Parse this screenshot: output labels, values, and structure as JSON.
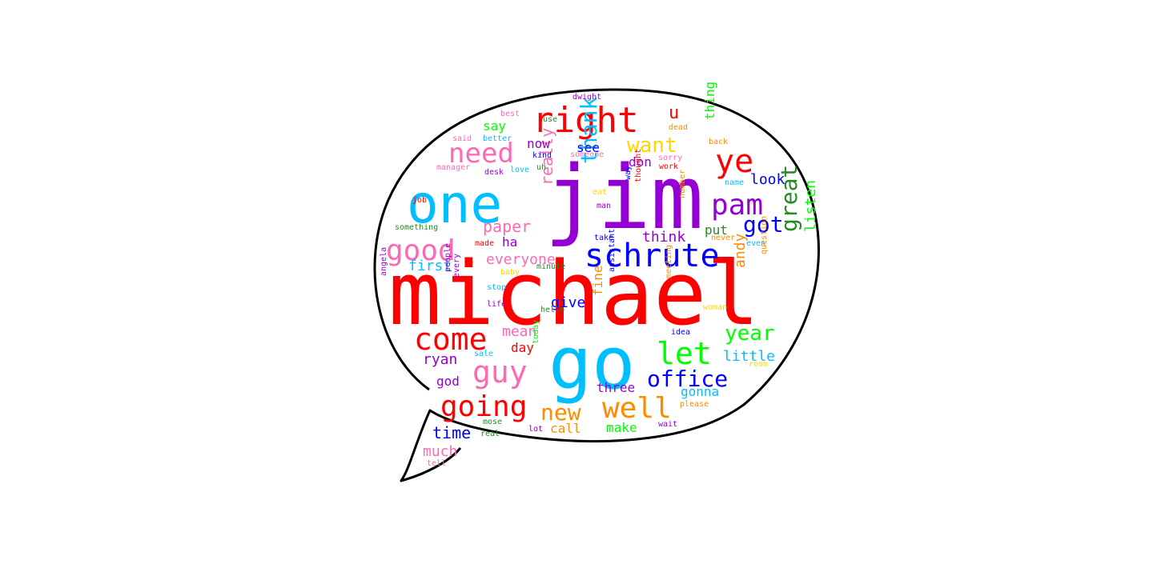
{
  "wordcloud": {
    "words": [
      {
        "text": "michael",
        "color": "#ff0000"
      },
      {
        "text": "jim",
        "color": "#9400d3"
      },
      {
        "text": "go",
        "color": "#00bfff"
      },
      {
        "text": "one",
        "color": "#00bfff"
      },
      {
        "text": "right",
        "color": "#ff0000"
      },
      {
        "text": "schrute",
        "color": "#0000ff"
      },
      {
        "text": "come",
        "color": "#ff0000"
      },
      {
        "text": "good",
        "color": "#ff69b4"
      },
      {
        "text": "need",
        "color": "#ff69b4"
      },
      {
        "text": "ye",
        "color": "#ff0000"
      },
      {
        "text": "pam",
        "color": "#9400d3"
      },
      {
        "text": "let",
        "color": "#00ff00"
      },
      {
        "text": "guy",
        "color": "#ff69b4"
      },
      {
        "text": "well",
        "color": "#ff8c00"
      },
      {
        "text": "going",
        "color": "#ff0000"
      },
      {
        "text": "office",
        "color": "#0000ff"
      },
      {
        "text": "want",
        "color": "#ffd700"
      },
      {
        "text": "got",
        "color": "#0000ff"
      },
      {
        "text": "thank",
        "color": "#00bfff"
      },
      {
        "text": "great",
        "color": "#228b22"
      },
      {
        "text": "year",
        "color": "#00ff00"
      },
      {
        "text": "new",
        "color": "#ff8c00"
      },
      {
        "text": "u",
        "color": "#ff0000"
      },
      {
        "text": "really",
        "color": "#ff69b4"
      },
      {
        "text": "paper",
        "color": "#ff69b4"
      },
      {
        "text": "everyone",
        "color": "#ff69b4"
      },
      {
        "text": "think",
        "color": "#9400d3"
      },
      {
        "text": "andy",
        "color": "#ff8c00"
      },
      {
        "text": "listen",
        "color": "#00ff00"
      },
      {
        "text": "little",
        "color": "#00bfff"
      },
      {
        "text": "gonna",
        "color": "#00bfff"
      },
      {
        "text": "look",
        "color": "#0000ff"
      },
      {
        "text": "time",
        "color": "#0000ff"
      },
      {
        "text": "ryan",
        "color": "#9400d3"
      },
      {
        "text": "first",
        "color": "#00bfff"
      },
      {
        "text": "mean",
        "color": "#ff69b4"
      },
      {
        "text": "day",
        "color": "#ff0000"
      },
      {
        "text": "give",
        "color": "#0000ff"
      },
      {
        "text": "fine",
        "color": "#ff8c00"
      },
      {
        "text": "thing",
        "color": "#00ff00"
      },
      {
        "text": "now",
        "color": "#9400d3"
      },
      {
        "text": "say",
        "color": "#00ff00"
      },
      {
        "text": "see",
        "color": "#0000ff"
      },
      {
        "text": "don",
        "color": "#9400d3"
      },
      {
        "text": "put",
        "color": "#228b22"
      },
      {
        "text": "ha",
        "color": "#9400d3"
      },
      {
        "text": "three",
        "color": "#9400d3"
      },
      {
        "text": "make",
        "color": "#00ff00"
      },
      {
        "text": "call",
        "color": "#ff8c00"
      },
      {
        "text": "much",
        "color": "#ff69b4"
      },
      {
        "text": "god",
        "color": "#9400d3"
      },
      {
        "text": "dwight",
        "color": "#9400d3"
      },
      {
        "text": "best",
        "color": "#ff69b4"
      },
      {
        "text": "use",
        "color": "#228b22"
      },
      {
        "text": "dead",
        "color": "#ff8c00"
      },
      {
        "text": "said",
        "color": "#ff69b4"
      },
      {
        "text": "better",
        "color": "#00bfff"
      },
      {
        "text": "kind",
        "color": "#0000ff"
      },
      {
        "text": "someone",
        "color": "#ff69b4"
      },
      {
        "text": "back",
        "color": "#ff8c00"
      },
      {
        "text": "sorry",
        "color": "#ff69b4"
      },
      {
        "text": "work",
        "color": "#ff0000"
      },
      {
        "text": "manager",
        "color": "#ff69b4"
      },
      {
        "text": "desk",
        "color": "#9400d3"
      },
      {
        "text": "love",
        "color": "#00bfff"
      },
      {
        "text": "uh",
        "color": "#228b22"
      },
      {
        "text": "name",
        "color": "#00bfff"
      },
      {
        "text": "job",
        "color": "#ff0000"
      },
      {
        "text": "eat",
        "color": "#ffd700"
      },
      {
        "text": "man",
        "color": "#9400d3"
      },
      {
        "text": "way",
        "color": "#0000ff"
      },
      {
        "text": "thought",
        "color": "#ff0000"
      },
      {
        "text": "number",
        "color": "#ff8c00"
      },
      {
        "text": "something",
        "color": "#228b22"
      },
      {
        "text": "made",
        "color": "#ff0000"
      },
      {
        "text": "take",
        "color": "#0000ff"
      },
      {
        "text": "never",
        "color": "#ff8c00"
      },
      {
        "text": "even",
        "color": "#00bfff"
      },
      {
        "text": "minute",
        "color": "#228b22"
      },
      {
        "text": "baby",
        "color": "#ffd700"
      },
      {
        "text": "stop",
        "color": "#00bfff"
      },
      {
        "text": "question",
        "color": "#ff8c00"
      },
      {
        "text": "assistant",
        "color": "#0000ff"
      },
      {
        "text": "meeting",
        "color": "#ff8c00"
      },
      {
        "text": "angela",
        "color": "#9400d3"
      },
      {
        "text": "people",
        "color": "#9400d3"
      },
      {
        "text": "every",
        "color": "#9400d3"
      },
      {
        "text": "life",
        "color": "#9400d3"
      },
      {
        "text": "hello",
        "color": "#228b22"
      },
      {
        "text": "woman",
        "color": "#ffd700"
      },
      {
        "text": "idea",
        "color": "#0000ff"
      },
      {
        "text": "sale",
        "color": "#00bfff"
      },
      {
        "text": "today",
        "color": "#00ff00"
      },
      {
        "text": "room",
        "color": "#ffd700"
      },
      {
        "text": "please",
        "color": "#ff8c00"
      },
      {
        "text": "mose",
        "color": "#228b22"
      },
      {
        "text": "real",
        "color": "#228b22"
      },
      {
        "text": "lot",
        "color": "#9400d3"
      },
      {
        "text": "wait",
        "color": "#9400d3"
      },
      {
        "text": "tell",
        "color": "#ff69b4"
      }
    ]
  }
}
